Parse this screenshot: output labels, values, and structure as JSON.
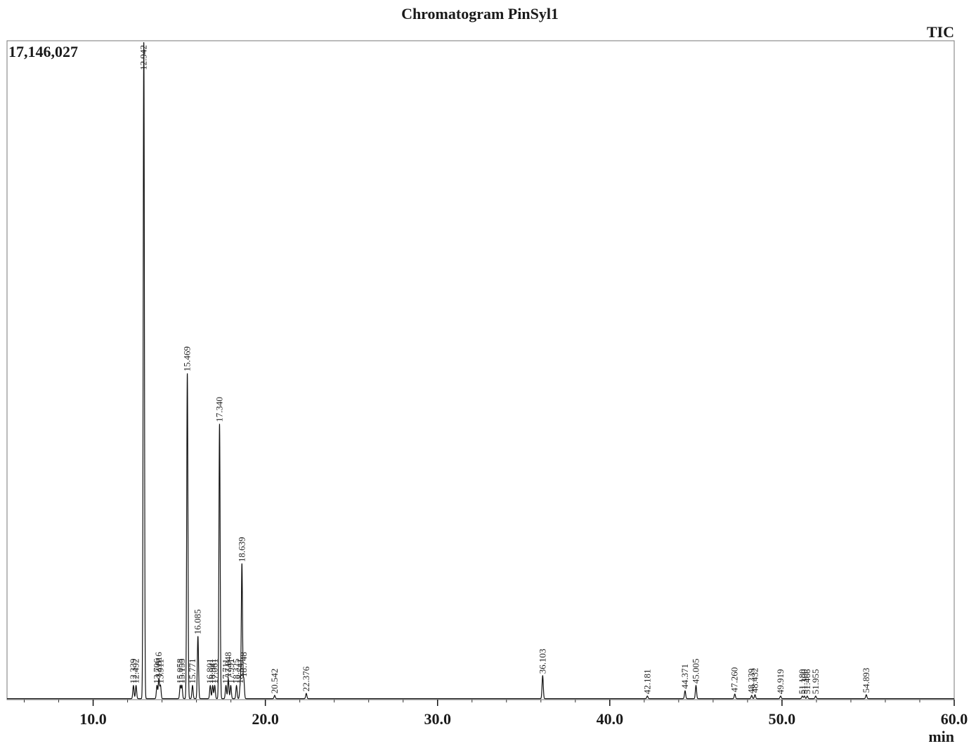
{
  "chart_data": {
    "type": "line",
    "title": "Chromatogram PinSyl1",
    "trace_label": "TIC",
    "y_max_label": "17,146,027",
    "y_max": 17146027,
    "x_unit": "min",
    "xlim": [
      5.0,
      60.0
    ],
    "x_ticks": [
      10.0,
      20.0,
      30.0,
      40.0,
      50.0,
      60.0
    ],
    "x_tick_labels": [
      "10.0",
      "20.0",
      "30.0",
      "40.0",
      "50.0",
      "60.0"
    ],
    "x_minor_step": 2.0,
    "grid": false,
    "series": [
      {
        "peaks": [
          {
            "rt": 12.339,
            "label": "12.339",
            "height": 0.02
          },
          {
            "rt": 12.492,
            "label": "12.492",
            "height": 0.02
          },
          {
            "rt": 12.942,
            "label": "12.942",
            "height": 1.0
          },
          {
            "rt": 13.706,
            "label": "13.706",
            "height": 0.02
          },
          {
            "rt": 13.816,
            "label": "13.816",
            "height": 0.03
          },
          {
            "rt": 13.911,
            "label": "13.911",
            "height": 0.02
          },
          {
            "rt": 15.058,
            "label": "15.058",
            "height": 0.02
          },
          {
            "rt": 15.153,
            "label": "15.153",
            "height": 0.02
          },
          {
            "rt": 15.469,
            "label": "15.469",
            "height": 0.495
          },
          {
            "rt": 15.771,
            "label": "15.771",
            "height": 0.02
          },
          {
            "rt": 16.085,
            "label": "16.085",
            "height": 0.095
          },
          {
            "rt": 16.801,
            "label": "16.801",
            "height": 0.02
          },
          {
            "rt": 16.941,
            "label": "16.941",
            "height": 0.02
          },
          {
            "rt": 17.061,
            "label": "17.061",
            "height": 0.02
          },
          {
            "rt": 17.34,
            "label": "17.340",
            "height": 0.418
          },
          {
            "rt": 17.711,
            "label": "17.711",
            "height": 0.02
          },
          {
            "rt": 17.848,
            "label": "17.848",
            "height": 0.03
          },
          {
            "rt": 17.991,
            "label": "17.991",
            "height": 0.02
          },
          {
            "rt": 18.325,
            "label": "18.325",
            "height": 0.02
          },
          {
            "rt": 18.541,
            "label": "18.541",
            "height": 0.02
          },
          {
            "rt": 18.639,
            "label": "18.639",
            "height": 0.205
          },
          {
            "rt": 18.748,
            "label": "18.748",
            "height": 0.03
          },
          {
            "rt": 20.542,
            "label": "20.542",
            "height": 0.005
          },
          {
            "rt": 22.376,
            "label": "22.376",
            "height": 0.008
          },
          {
            "rt": 36.103,
            "label": "36.103",
            "height": 0.035
          },
          {
            "rt": 42.181,
            "label": "42.181",
            "height": 0.004
          },
          {
            "rt": 44.371,
            "label": "44.371",
            "height": 0.012
          },
          {
            "rt": 45.005,
            "label": "45.005",
            "height": 0.02
          },
          {
            "rt": 47.26,
            "label": "47.260",
            "height": 0.007
          },
          {
            "rt": 48.239,
            "label": "48.239",
            "height": 0.005
          },
          {
            "rt": 48.432,
            "label": "48.432",
            "height": 0.006
          },
          {
            "rt": 49.919,
            "label": "49.919",
            "height": 0.004
          },
          {
            "rt": 51.18,
            "label": "51.180",
            "height": 0.004
          },
          {
            "rt": 51.3,
            "label": "51.300",
            "height": 0.004
          },
          {
            "rt": 51.466,
            "label": "51.466",
            "height": 0.004
          },
          {
            "rt": 51.955,
            "label": "51.955",
            "height": 0.004
          },
          {
            "rt": 54.893,
            "label": "54.893",
            "height": 0.006
          }
        ]
      }
    ]
  }
}
